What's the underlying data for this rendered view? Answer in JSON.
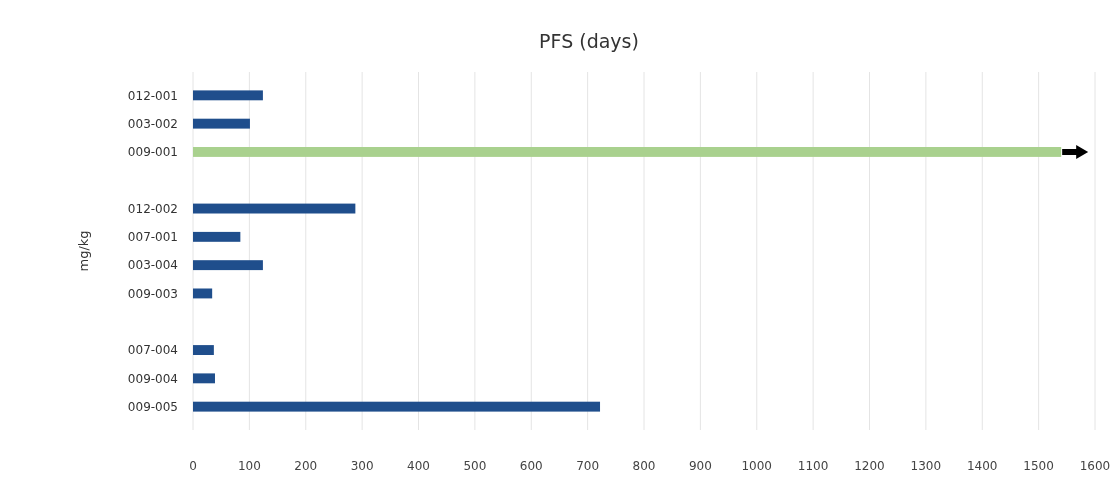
{
  "chart_data": {
    "type": "bar",
    "orientation": "horizontal",
    "title": "PFS (days)",
    "ylabel": "mg/kg",
    "categories": [
      "012-001",
      "003-002",
      "009-001",
      null,
      "012-002",
      "007-001",
      "003-004",
      "009-003",
      null,
      "007-004",
      "009-004",
      "009-005"
    ],
    "values": [
      124,
      101,
      1540,
      null,
      288,
      84,
      124,
      34,
      null,
      37,
      39,
      722
    ],
    "colors": [
      "#1f4e8c",
      "#1f4e8c",
      "#a9d18e",
      null,
      "#1f4e8c",
      "#1f4e8c",
      "#1f4e8c",
      "#1f4e8c",
      null,
      "#1f4e8c",
      "#1f4e8c",
      "#1f4e8c"
    ],
    "xlim": [
      0,
      1600
    ],
    "xticks": [
      0,
      100,
      200,
      300,
      400,
      500,
      600,
      700,
      800,
      900,
      1000,
      1100,
      1200,
      1300,
      1400,
      1500,
      1600
    ],
    "grid": "x"
  }
}
